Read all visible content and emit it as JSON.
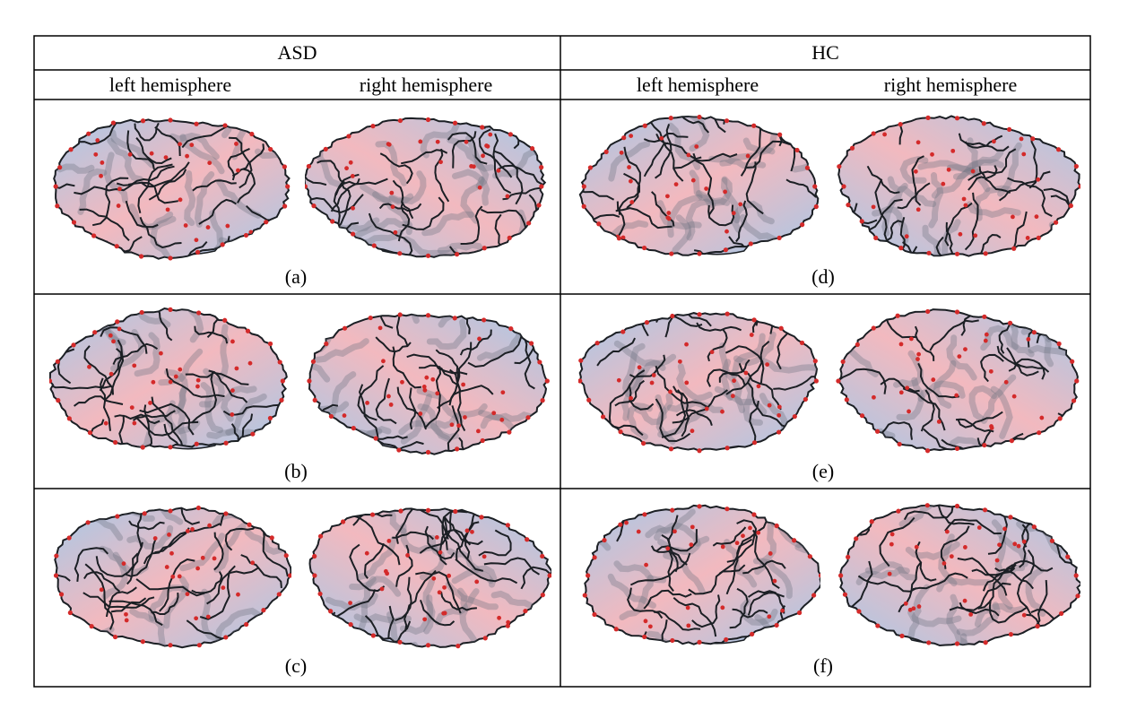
{
  "groups": [
    {
      "label": "ASD",
      "hemispheres": [
        "left hemisphere",
        "right hemisphere"
      ],
      "panels": [
        "(a)",
        "(b)",
        "(c)"
      ]
    },
    {
      "label": "HC",
      "hemispheres": [
        "left hemisphere",
        "right hemisphere"
      ],
      "panels": [
        "(d)",
        "(e)",
        "(f)"
      ]
    }
  ],
  "icons": {
    "brain": "brain-surface-icon"
  },
  "colors": {
    "surface_blue": "#a9c8e6",
    "surface_pink": "#f2b9bf",
    "sulcal_line": "#1b1f24",
    "landmark_point": "#d42a2a",
    "grid_line": "#000000"
  }
}
